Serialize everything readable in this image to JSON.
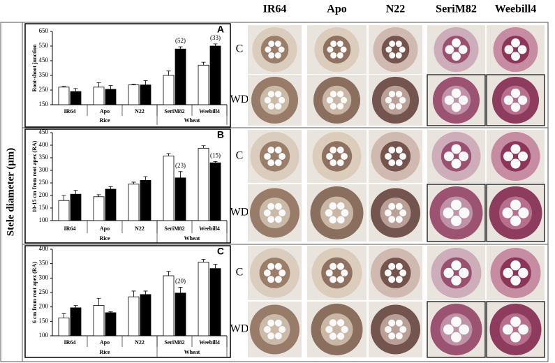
{
  "shared_y_label": "Stele diameter (μm)",
  "image_columns": [
    "IR64",
    "Apo",
    "N22",
    "SeriM82",
    "Weebill4"
  ],
  "image_rows": [
    "C",
    "WD"
  ],
  "chart_data": [
    {
      "type": "bar",
      "panel": "A",
      "y_label": "Root-shoot junction",
      "categories": [
        "IR64",
        "Apo",
        "N22",
        "SeriM82",
        "Weebill4"
      ],
      "groups": [
        {
          "label": "Rice",
          "size": 3
        },
        {
          "label": "Wheat",
          "size": 2
        }
      ],
      "series": [
        {
          "color": "#ffffff",
          "values": [
            270,
            270,
            285,
            350,
            420
          ],
          "errors": [
            5,
            30,
            5,
            30,
            20
          ]
        },
        {
          "color": "#000000",
          "values": [
            240,
            255,
            285,
            530,
            550
          ],
          "errors": [
            20,
            25,
            30,
            15,
            15
          ]
        }
      ],
      "annotations": [
        {
          "text": "(52)",
          "series": 1,
          "category_index": 3
        },
        {
          "text": "(33)",
          "series": 1,
          "category_index": 4
        }
      ],
      "ylim": [
        150,
        650
      ],
      "yticks": [
        150,
        250,
        350,
        450,
        550,
        650
      ]
    },
    {
      "type": "bar",
      "panel": "B",
      "y_label": "10-15 cm from root apex (RA)",
      "categories": [
        "IR64",
        "Apo",
        "N22",
        "SeriM82",
        "Weebill4"
      ],
      "groups": [
        {
          "label": "Rice",
          "size": 3
        },
        {
          "label": "Wheat",
          "size": 2
        }
      ],
      "series": [
        {
          "color": "#ffffff",
          "values": [
            180,
            195,
            245,
            357,
            388
          ],
          "errors": [
            20,
            8,
            8,
            10,
            10
          ]
        },
        {
          "color": "#000000",
          "values": [
            205,
            225,
            260,
            270,
            330
          ],
          "errors": [
            15,
            10,
            15,
            25,
            5
          ]
        }
      ],
      "annotations": [
        {
          "text": "(23)",
          "series": 1,
          "category_index": 3
        },
        {
          "text": "(15)",
          "series": 1,
          "category_index": 4
        }
      ],
      "ylim": [
        100,
        450
      ],
      "yticks": [
        100,
        150,
        200,
        250,
        300,
        350,
        400,
        450
      ]
    },
    {
      "type": "bar",
      "panel": "C",
      "y_label": "6 cm from root apex (RA)",
      "categories": [
        "IR64",
        "Apo",
        "N22",
        "SeriM82",
        "Weebill4"
      ],
      "groups": [
        {
          "label": "Rice",
          "size": 3
        },
        {
          "label": "Wheat",
          "size": 2
        }
      ],
      "series": [
        {
          "color": "#ffffff",
          "values": [
            162,
            205,
            235,
            308,
            355
          ],
          "errors": [
            15,
            25,
            20,
            15,
            10
          ]
        },
        {
          "color": "#000000",
          "values": [
            197,
            180,
            243,
            248,
            333
          ],
          "errors": [
            8,
            3,
            12,
            20,
            15
          ]
        }
      ],
      "annotations": [
        {
          "text": "(20)",
          "series": 1,
          "category_index": 3
        }
      ],
      "ylim": [
        100,
        400
      ],
      "yticks": [
        100,
        150,
        200,
        250,
        300,
        350,
        400
      ]
    }
  ]
}
